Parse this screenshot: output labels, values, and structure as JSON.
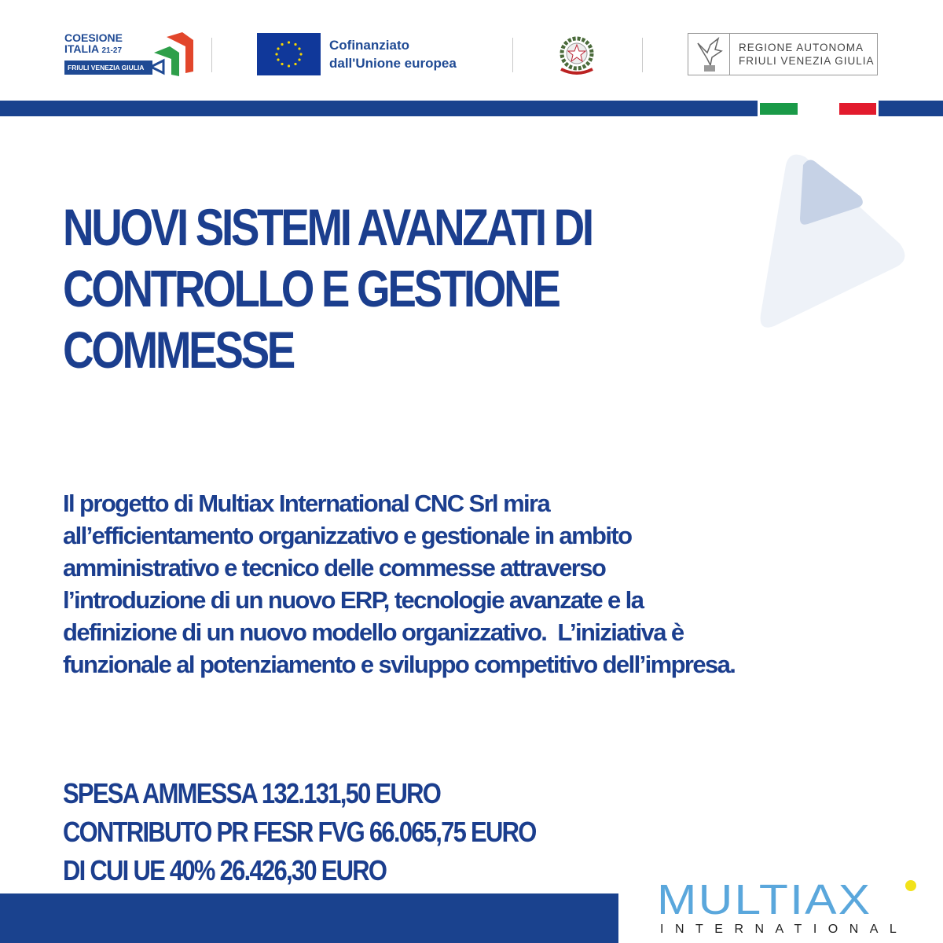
{
  "header": {
    "coesione_logo": {
      "line1": "COESIONE",
      "line2": "ITALIA",
      "years": "21-27",
      "region": "FRIULI VENEZIA GIULIA"
    },
    "eu_logo": {
      "line1": "Cofinanziato",
      "line2": "dall'Unione europea"
    },
    "italy_emblem": "emblem-icon",
    "region_logo": {
      "line1": "REGIONE AUTONOMA",
      "line2": "FRIULI VENEZIA GIULIA"
    },
    "flag_colors": {
      "green": "#1a9a48",
      "white": "#ffffff",
      "red": "#e21b2d"
    }
  },
  "title": {
    "lines": [
      "NUOVI SISTEMI AVANZATI DI",
      "CONTROLLO E GESTIONE",
      "COMMESSE"
    ]
  },
  "description": {
    "lines": [
      "Il progetto di Multiax International CNC Srl mira",
      "all’efficientamento organizzativo e gestionale in ambito",
      "amministrativo e tecnico delle commesse attraverso",
      "l’introduzione di un nuovo ERP, tecnologie avanzate e la",
      "definizione di un nuovo modello organizzativo.  L’iniziativa è",
      "funzionale al potenziamento e sviluppo competitivo dell’impresa."
    ]
  },
  "funding": {
    "lines": [
      "SPESA AMMESSA 132.131,50 EURO",
      "CONTRIBUTO PR FESR FVG 66.065,75 EURO",
      "DI CUI UE 40% 26.426,30 EURO"
    ]
  },
  "footer": {
    "brand": "MULTIAX",
    "brand_sub": "INTERNATIONAL"
  },
  "colors": {
    "primary": "#1a428e",
    "text": "#1b3e8e",
    "brand_blue": "#5aa7dc",
    "brand_dot": "#f2e21a"
  }
}
